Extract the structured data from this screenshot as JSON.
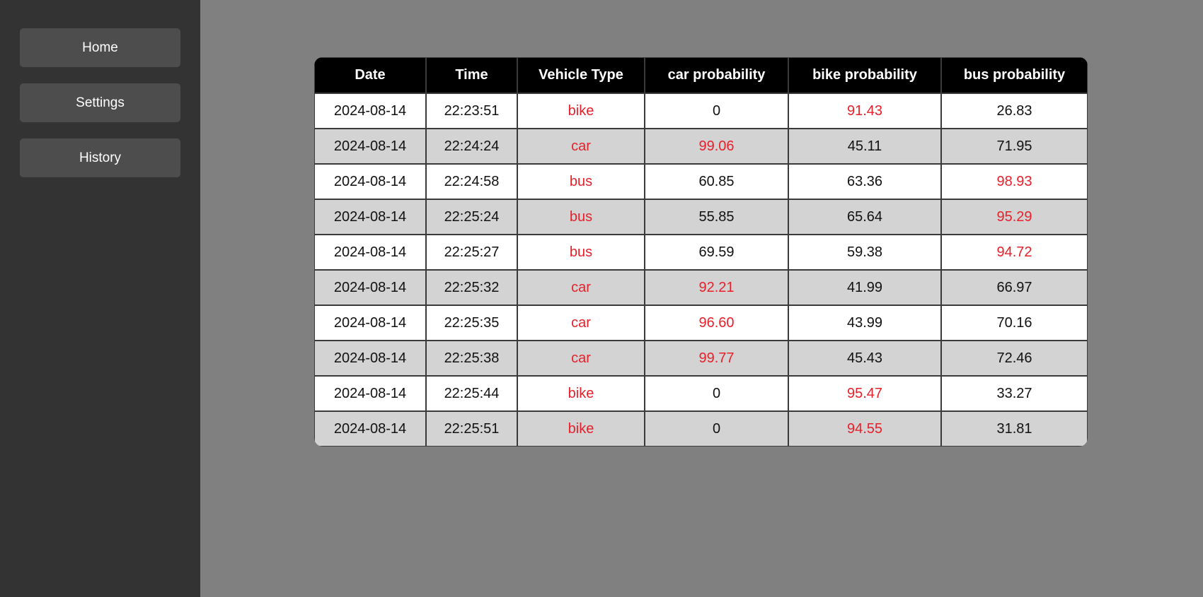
{
  "nav": {
    "items": [
      "Home",
      "Settings",
      "History"
    ]
  },
  "colors": {
    "sidebar_bg": "#333333",
    "main_bg": "#808080",
    "nav_button_bg": "#4d4d4d",
    "header_bg": "#000000",
    "row_light": "#ffffff",
    "row_dark": "#d3d3d3",
    "highlight_text": "#e8202a"
  },
  "table": {
    "columns": [
      "Date",
      "Time",
      "Vehicle Type",
      "car probability",
      "bike probability",
      "bus probability"
    ],
    "rows": [
      [
        "2024-08-14",
        "22:23:51",
        "bike",
        "0",
        "91.43",
        "26.83"
      ],
      [
        "2024-08-14",
        "22:24:24",
        "car",
        "99.06",
        "45.11",
        "71.95"
      ],
      [
        "2024-08-14",
        "22:24:58",
        "bus",
        "60.85",
        "63.36",
        "98.93"
      ],
      [
        "2024-08-14",
        "22:25:24",
        "bus",
        "55.85",
        "65.64",
        "95.29"
      ],
      [
        "2024-08-14",
        "22:25:27",
        "bus",
        "69.59",
        "59.38",
        "94.72"
      ],
      [
        "2024-08-14",
        "22:25:32",
        "car",
        "92.21",
        "41.99",
        "66.97"
      ],
      [
        "2024-08-14",
        "22:25:35",
        "car",
        "96.60",
        "43.99",
        "70.16"
      ],
      [
        "2024-08-14",
        "22:25:38",
        "car",
        "99.77",
        "45.43",
        "72.46"
      ],
      [
        "2024-08-14",
        "22:25:44",
        "bike",
        "0",
        "95.47",
        "33.27"
      ],
      [
        "2024-08-14",
        "22:25:51",
        "bike",
        "0",
        "94.55",
        "31.81"
      ]
    ]
  }
}
